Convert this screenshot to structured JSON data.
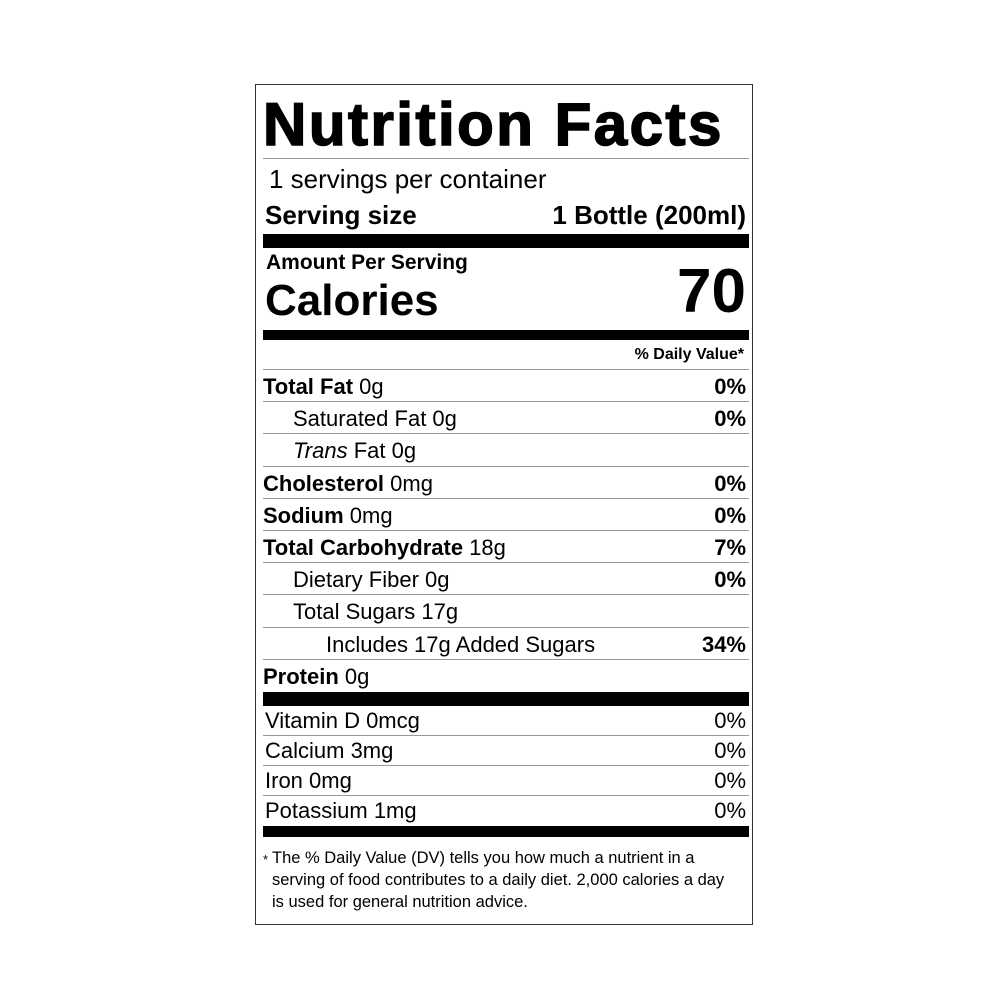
{
  "title": "Nutrition Facts",
  "servings_per_container": "1 servings per container",
  "serving_size": {
    "label": "Serving size",
    "value": "1 Bottle (200ml)"
  },
  "amount_per_serving": "Amount Per Serving",
  "calories": {
    "label": "Calories",
    "value": "70"
  },
  "daily_value_header": "% Daily Value*",
  "nutrients": [
    {
      "bold": "Total Fat",
      "italic": "",
      "text": " 0g",
      "dv": "0%",
      "indent": 0
    },
    {
      "bold": "",
      "italic": "",
      "text": "Saturated Fat 0g",
      "dv": "0%",
      "indent": 1
    },
    {
      "bold": "",
      "italic": "Trans",
      "text": " Fat 0g",
      "dv": "",
      "indent": 1
    },
    {
      "bold": "Cholesterol",
      "italic": "",
      "text": " 0mg",
      "dv": "0%",
      "indent": 0
    },
    {
      "bold": "Sodium",
      "italic": "",
      "text": " 0mg",
      "dv": "0%",
      "indent": 0
    },
    {
      "bold": "Total Carbohydrate",
      "italic": "",
      "text": " 18g",
      "dv": "7%",
      "indent": 0
    },
    {
      "bold": "",
      "italic": "",
      "text": "Dietary Fiber 0g",
      "dv": "0%",
      "indent": 1
    },
    {
      "bold": "",
      "italic": "",
      "text": "Total Sugars 17g",
      "dv": "",
      "indent": 1
    },
    {
      "bold": "",
      "italic": "",
      "text": "Includes 17g Added Sugars",
      "dv": "34%",
      "indent": 2
    },
    {
      "bold": "Protein",
      "italic": "",
      "text": " 0g",
      "dv": "",
      "indent": 0
    }
  ],
  "vitamins": [
    {
      "label": "Vitamin D 0mcg",
      "dv": "0%"
    },
    {
      "label": "Calcium 3mg",
      "dv": "0%"
    },
    {
      "label": "Iron 0mg",
      "dv": "0%"
    },
    {
      "label": "Potassium 1mg",
      "dv": "0%"
    }
  ],
  "footnote": {
    "marker": "*",
    "text": "The % Daily Value (DV) tells you how much a nutrient in a serving of food contributes to a daily diet. 2,000 calories a day is used for general nutrition advice."
  }
}
